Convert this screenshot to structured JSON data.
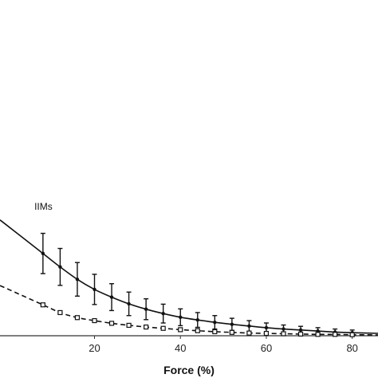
{
  "chart_data": {
    "type": "line",
    "xlabel": "Force (%)",
    "ylabel": "",
    "xlim": [
      -2,
      86
    ],
    "ylim": [
      0,
      1
    ],
    "x_ticks": [
      "20",
      "40",
      "60",
      "80"
    ],
    "grid": false,
    "colors": {
      "line": "#111111",
      "axis": "#333333",
      "text": "#222222"
    },
    "annotations": [
      {
        "text": "IIMs",
        "x": 6,
        "y": 0.375
      }
    ],
    "series": [
      {
        "style": "solid",
        "marker": "dot",
        "x": [
          8,
          12,
          16,
          20,
          24,
          28,
          32,
          36,
          40,
          44,
          48,
          52,
          56,
          60,
          64,
          68,
          72,
          76,
          80
        ],
        "y": [
          0.245,
          0.205,
          0.168,
          0.138,
          0.115,
          0.095,
          0.079,
          0.066,
          0.055,
          0.047,
          0.04,
          0.034,
          0.029,
          0.024,
          0.02,
          0.017,
          0.014,
          0.011,
          0.009
        ],
        "err": [
          0.06,
          0.055,
          0.05,
          0.045,
          0.04,
          0.035,
          0.031,
          0.028,
          0.025,
          0.022,
          0.02,
          0.018,
          0.016,
          0.014,
          0.012,
          0.011,
          0.01,
          0.009,
          0.008
        ]
      },
      {
        "style": "dashed",
        "marker": "square",
        "x": [
          8,
          12,
          16,
          20,
          24,
          28,
          32,
          36,
          40,
          44,
          48,
          52,
          56,
          60,
          64,
          68,
          72,
          76,
          80
        ],
        "y": [
          0.092,
          0.069,
          0.054,
          0.045,
          0.037,
          0.031,
          0.026,
          0.022,
          0.018,
          0.015,
          0.012,
          0.01,
          0.008,
          0.007,
          0.006,
          0.005,
          0.004,
          0.004,
          0.003
        ],
        "err": [
          0.004,
          0.003,
          0.003,
          0.003,
          0.002,
          0.002,
          0.002,
          0.002,
          0.002,
          0.002,
          0.001,
          0.001,
          0.001,
          0.001,
          0.001,
          0.001,
          0.001,
          0.001,
          0.001
        ]
      }
    ]
  }
}
